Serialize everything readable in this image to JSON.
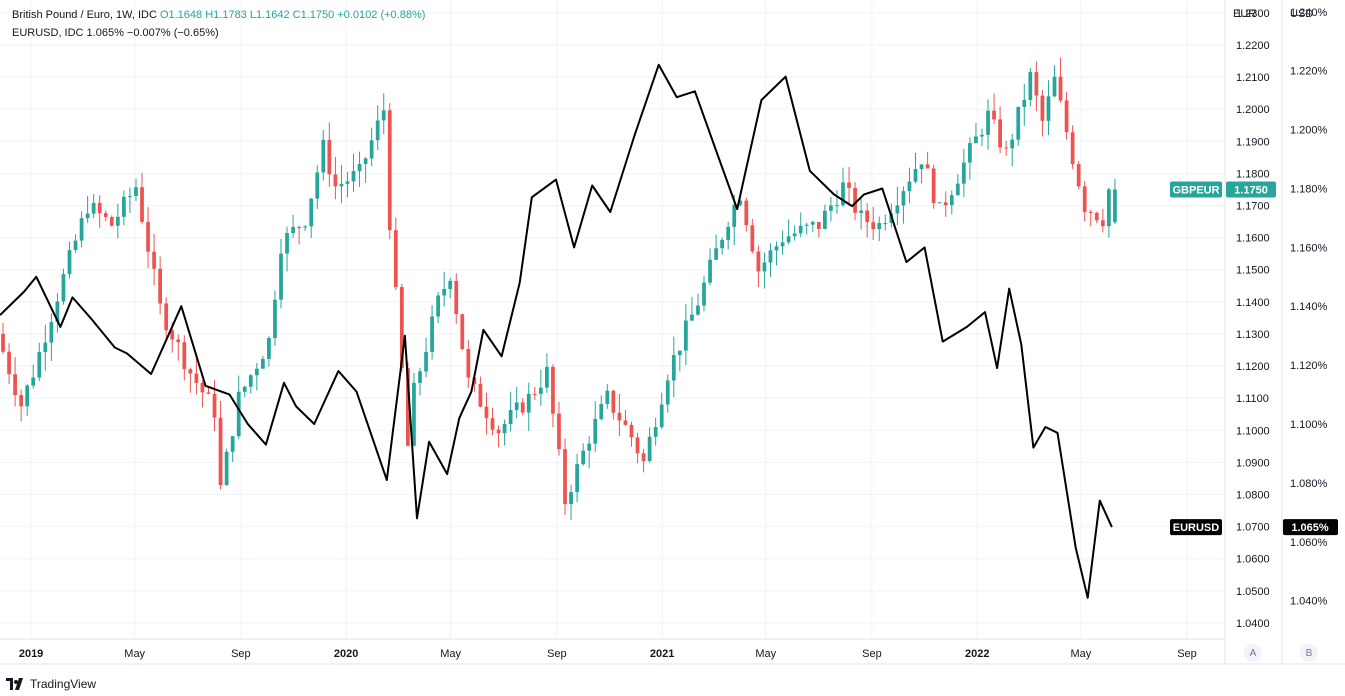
{
  "legend": {
    "line1_name": "British Pound / Euro, 1W, IDC",
    "line1_ohlc": "O1.1648  H1.1783  L1.1642  C1.1750",
    "line1_change": "+0.0102 (+0.88%)",
    "line2": "EURUSD, IDC  1.065%  −0.007% (−0.65%)"
  },
  "axis_heads": {
    "eur": "EUR",
    "usd": "USD"
  },
  "scale_buttons": {
    "a": "A",
    "b": "B"
  },
  "brand": {
    "name": "TradingView",
    "icon": "tradingview-logo-icon"
  },
  "colors": {
    "up": "#26a69a",
    "down": "#ef5350",
    "line": "#000000",
    "grid": "#f0f3fa"
  },
  "chart_data": {
    "type": "candlestick",
    "grid": true,
    "x_labels": [
      "2019",
      "May",
      "Sep",
      "2020",
      "May",
      "Sep",
      "2021",
      "May",
      "Sep",
      "2022",
      "May",
      "Sep"
    ],
    "x_label_dates": [
      "2019-01-01",
      "2019-05-01",
      "2019-09-01",
      "2020-01-01",
      "2020-05-01",
      "2020-09-01",
      "2021-01-01",
      "2021-05-01",
      "2021-09-01",
      "2022-01-01",
      "2022-05-01",
      "2022-09-01"
    ],
    "x_range": [
      "2018-11-26",
      "2022-10-15"
    ],
    "left_axis": {
      "title": "EUR",
      "range": [
        1.035,
        1.234
      ],
      "ticks": [
        "1.2300",
        "1.2200",
        "1.2100",
        "1.2000",
        "1.1900",
        "1.1800",
        "1.1700",
        "1.1600",
        "1.1500",
        "1.1400",
        "1.1300",
        "1.1200",
        "1.1100",
        "1.1000",
        "1.0900",
        "1.0800",
        "1.0700",
        "1.0600",
        "1.0500",
        "1.0400"
      ]
    },
    "right_axis": {
      "title": "USD",
      "range": [
        1.027,
        1.244
      ],
      "ticks": [
        "1.240%",
        "1.220%",
        "1.200%",
        "1.180%",
        "1.160%",
        "1.140%",
        "1.120%",
        "1.100%",
        "1.080%",
        "1.060%",
        "1.040%"
      ]
    },
    "series": [
      {
        "name": "GBPEUR",
        "type": "candlestick",
        "axis": "left",
        "last_label": "1.1750",
        "anchors": [
          [
            "2018-11-26",
            1.13
          ],
          [
            "2018-12-24",
            1.108
          ],
          [
            "2019-01-07",
            1.118
          ],
          [
            "2019-02-04",
            1.142
          ],
          [
            "2019-03-11",
            1.17
          ],
          [
            "2019-04-08",
            1.164
          ],
          [
            "2019-05-06",
            1.176
          ],
          [
            "2019-06-03",
            1.138
          ],
          [
            "2019-07-08",
            1.118
          ],
          [
            "2019-08-05",
            1.106
          ],
          [
            "2019-08-12",
            1.082
          ],
          [
            "2019-09-02",
            1.11
          ],
          [
            "2019-10-07",
            1.128
          ],
          [
            "2019-10-21",
            1.158
          ],
          [
            "2019-11-18",
            1.166
          ],
          [
            "2019-12-09",
            1.188
          ],
          [
            "2019-12-23",
            1.176
          ],
          [
            "2020-01-20",
            1.18
          ],
          [
            "2020-02-17",
            1.2
          ],
          [
            "2020-02-24",
            1.165
          ],
          [
            "2020-03-16",
            1.095
          ],
          [
            "2020-03-23",
            1.112
          ],
          [
            "2020-04-20",
            1.14
          ],
          [
            "2020-05-04",
            1.149
          ],
          [
            "2020-05-25",
            1.115
          ],
          [
            "2020-06-29",
            1.1
          ],
          [
            "2020-08-03",
            1.11
          ],
          [
            "2020-08-24",
            1.118
          ],
          [
            "2020-09-14",
            1.078
          ],
          [
            "2020-10-12",
            1.098
          ],
          [
            "2020-11-02",
            1.11
          ],
          [
            "2020-11-30",
            1.098
          ],
          [
            "2020-12-14",
            1.09
          ],
          [
            "2021-01-11",
            1.118
          ],
          [
            "2021-02-15",
            1.14
          ],
          [
            "2021-03-22",
            1.166
          ],
          [
            "2021-04-05",
            1.174
          ],
          [
            "2021-04-26",
            1.15
          ],
          [
            "2021-05-24",
            1.16
          ],
          [
            "2021-07-05",
            1.164
          ],
          [
            "2021-08-02",
            1.176
          ],
          [
            "2021-08-23",
            1.166
          ],
          [
            "2021-09-13",
            1.164
          ],
          [
            "2021-10-11",
            1.176
          ],
          [
            "2021-11-01",
            1.185
          ],
          [
            "2021-11-22",
            1.168
          ],
          [
            "2021-12-20",
            1.183
          ],
          [
            "2022-01-17",
            1.198
          ],
          [
            "2022-02-07",
            1.186
          ],
          [
            "2022-03-07",
            1.21
          ],
          [
            "2022-03-21",
            1.196
          ],
          [
            "2022-04-04",
            1.209
          ],
          [
            "2022-04-25",
            1.185
          ],
          [
            "2022-05-09",
            1.17
          ],
          [
            "2022-05-30",
            1.166
          ],
          [
            "2022-06-06",
            1.175
          ]
        ],
        "last_bar": {
          "open": 1.1648,
          "high": 1.1783,
          "low": 1.1642,
          "close": 1.175
        }
      },
      {
        "name": "EURUSD",
        "type": "line",
        "axis": "right",
        "last_label": "1.065%",
        "points": [
          [
            "2018-11-26",
            1.137
          ],
          [
            "2018-12-24",
            1.145
          ],
          [
            "2019-01-07",
            1.15
          ],
          [
            "2019-02-04",
            1.133
          ],
          [
            "2019-02-18",
            1.143
          ],
          [
            "2019-03-11",
            1.136
          ],
          [
            "2019-04-08",
            1.126
          ],
          [
            "2019-04-22",
            1.124
          ],
          [
            "2019-05-20",
            1.117
          ],
          [
            "2019-06-24",
            1.14
          ],
          [
            "2019-07-22",
            1.113
          ],
          [
            "2019-08-19",
            1.11
          ],
          [
            "2019-09-09",
            1.1
          ],
          [
            "2019-09-30",
            1.093
          ],
          [
            "2019-10-21",
            1.114
          ],
          [
            "2019-11-04",
            1.106
          ],
          [
            "2019-11-25",
            1.1
          ],
          [
            "2019-12-23",
            1.118
          ],
          [
            "2020-01-13",
            1.111
          ],
          [
            "2020-02-17",
            1.081
          ],
          [
            "2020-03-09",
            1.13
          ],
          [
            "2020-03-23",
            1.068
          ],
          [
            "2020-04-06",
            1.094
          ],
          [
            "2020-04-27",
            1.083
          ],
          [
            "2020-05-11",
            1.102
          ],
          [
            "2020-05-25",
            1.111
          ],
          [
            "2020-06-08",
            1.132
          ],
          [
            "2020-06-29",
            1.123
          ],
          [
            "2020-07-20",
            1.148
          ],
          [
            "2020-08-03",
            1.177
          ],
          [
            "2020-08-31",
            1.183
          ],
          [
            "2020-09-21",
            1.16
          ],
          [
            "2020-10-12",
            1.181
          ],
          [
            "2020-11-02",
            1.172
          ],
          [
            "2020-11-30",
            1.198
          ],
          [
            "2020-12-28",
            1.222
          ],
          [
            "2021-01-18",
            1.211
          ],
          [
            "2021-02-08",
            1.213
          ],
          [
            "2021-03-08",
            1.19
          ],
          [
            "2021-03-29",
            1.173
          ],
          [
            "2021-04-26",
            1.21
          ],
          [
            "2021-05-24",
            1.218
          ],
          [
            "2021-06-21",
            1.186
          ],
          [
            "2021-07-19",
            1.178
          ],
          [
            "2021-08-09",
            1.174
          ],
          [
            "2021-08-23",
            1.178
          ],
          [
            "2021-09-13",
            1.18
          ],
          [
            "2021-10-11",
            1.155
          ],
          [
            "2021-11-01",
            1.16
          ],
          [
            "2021-11-22",
            1.128
          ],
          [
            "2021-12-20",
            1.133
          ],
          [
            "2022-01-10",
            1.138
          ],
          [
            "2022-01-24",
            1.119
          ],
          [
            "2022-02-07",
            1.146
          ],
          [
            "2022-02-21",
            1.127
          ],
          [
            "2022-03-07",
            1.092
          ],
          [
            "2022-03-21",
            1.099
          ],
          [
            "2022-04-04",
            1.097
          ],
          [
            "2022-04-25",
            1.058
          ],
          [
            "2022-05-09",
            1.041
          ],
          [
            "2022-05-23",
            1.074
          ],
          [
            "2022-06-06",
            1.065
          ]
        ]
      }
    ]
  }
}
